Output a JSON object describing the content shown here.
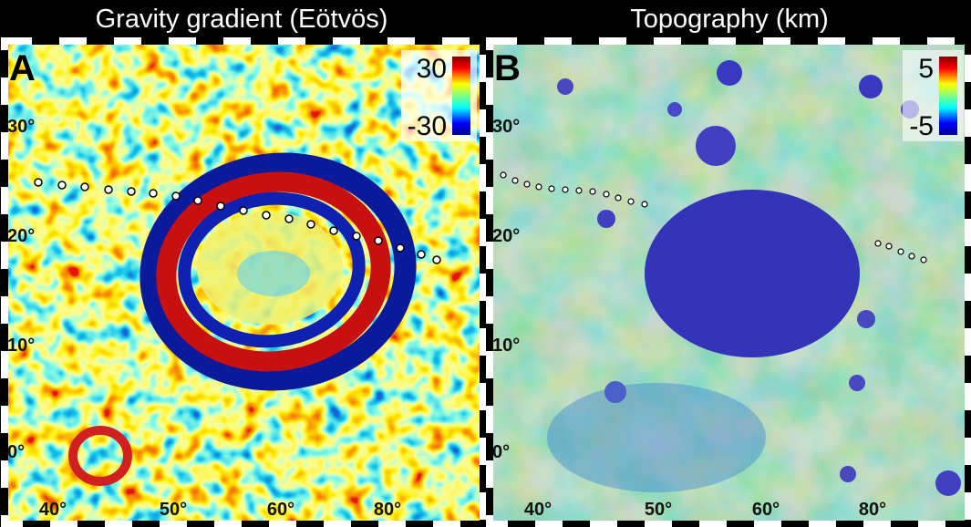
{
  "panels": [
    {
      "title": "Gravity gradient (Eötvös)",
      "label": "A",
      "colorbar": {
        "max": "30",
        "min": "-30"
      },
      "lat_labels": [
        "30°",
        "20°",
        "10°",
        "0°"
      ],
      "lon_labels": [
        "40°",
        "50°",
        "60°",
        "80°"
      ]
    },
    {
      "title": "Topography (km)",
      "label": "B",
      "colorbar": {
        "max": "5",
        "min": "-5"
      },
      "lat_labels": [
        "30°",
        "20°",
        "10°",
        "0°"
      ],
      "lon_labels": [
        "40°",
        "50°",
        "60°",
        "80°"
      ]
    }
  ]
}
